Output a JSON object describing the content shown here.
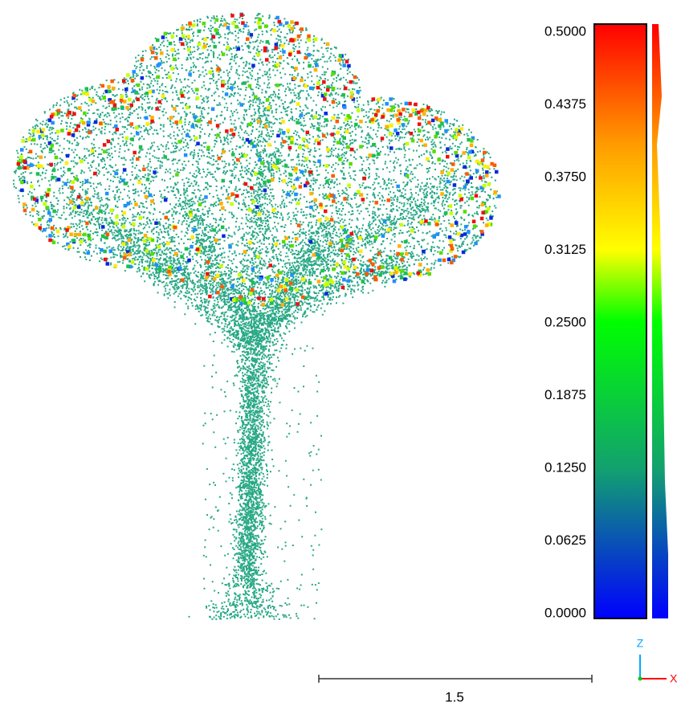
{
  "color_scale": {
    "range": [
      0,
      0.5
    ],
    "ticks": [
      {
        "value": 0.5,
        "label": "0.5000"
      },
      {
        "value": 0.4375,
        "label": "0.4375"
      },
      {
        "value": 0.375,
        "label": "0.3750"
      },
      {
        "value": 0.3125,
        "label": "0.3125"
      },
      {
        "value": 0.25,
        "label": "0.2500"
      },
      {
        "value": 0.1875,
        "label": "0.1875"
      },
      {
        "value": 0.125,
        "label": "0.1250"
      },
      {
        "value": 0.0625,
        "label": "0.0625"
      },
      {
        "value": 0,
        "label": "0.0000"
      }
    ]
  },
  "scale_bar": {
    "label": "1.5"
  },
  "axes": {
    "z": "Z",
    "x": "X"
  }
}
